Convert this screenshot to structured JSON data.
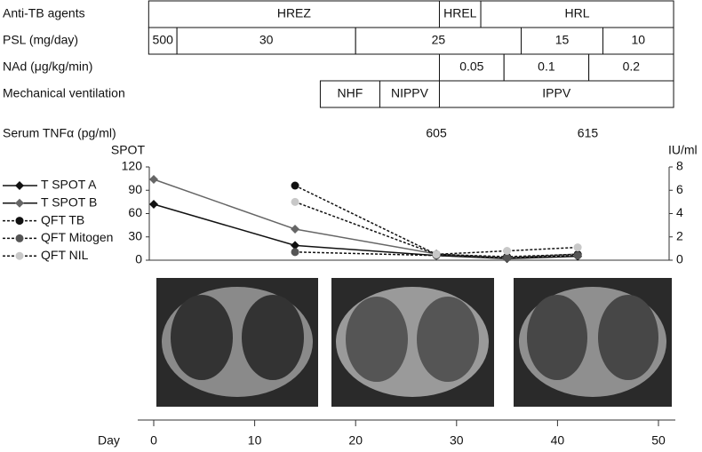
{
  "timeline": {
    "rows": [
      {
        "label": "Anti-TB agents",
        "segments": [
          {
            "label": "HREZ",
            "start": -0.5,
            "end": 28.3
          },
          {
            "label": "HREL",
            "start": 28.3,
            "end": 32.4
          },
          {
            "label": "HRL",
            "start": 32.4,
            "end": 51.5
          }
        ]
      },
      {
        "label": "PSL (mg/day)",
        "segments": [
          {
            "label": 500,
            "start": -0.5,
            "end": 2.3
          },
          {
            "label": 30,
            "start": 2.3,
            "end": 20
          },
          {
            "label": 25,
            "start": 20,
            "end": 36.4
          },
          {
            "label": 15,
            "start": 36.4,
            "end": 44.5
          },
          {
            "label": 10,
            "start": 44.5,
            "end": 51.5
          }
        ]
      },
      {
        "label": "NAd (μg/kg/min)",
        "segments": [
          {
            "label": 0.05,
            "start": 28.3,
            "end": 34.7
          },
          {
            "label": 0.1,
            "start": 34.7,
            "end": 43.1
          },
          {
            "label": 0.2,
            "start": 43.1,
            "end": 51.5
          }
        ]
      },
      {
        "label": "Mechanical ventilation",
        "segments": [
          {
            "label": "NHF",
            "start": 16.5,
            "end": 22.4
          },
          {
            "label": "NIPPV",
            "start": 22.4,
            "end": 28.3
          },
          {
            "label": "IPPV",
            "start": 28.3,
            "end": 51.5
          }
        ]
      }
    ]
  },
  "serum_tnf": {
    "label": "Serum TNFα (pg/ml)",
    "x": [
      28,
      43
    ],
    "values": [
      605,
      615
    ]
  },
  "chart_data": {
    "type": "line",
    "xlabel": "Day",
    "ylabel": "SPOT",
    "y2label": "IU/ml",
    "x": [
      0,
      14,
      28,
      35,
      42
    ],
    "xlim": [
      0,
      50
    ],
    "xticks": [
      0,
      10,
      20,
      30,
      40,
      50
    ],
    "ylim": [
      0,
      120
    ],
    "yticks": [
      0,
      30,
      60,
      90,
      120
    ],
    "y2lim": [
      0,
      8
    ],
    "y2ticks": [
      0,
      2,
      4,
      6,
      8
    ],
    "series": [
      {
        "name": "T SPOT A",
        "color": "#111111",
        "line_style": "solid",
        "marker": "diamond",
        "values": [
          72,
          19,
          6,
          2,
          5
        ]
      },
      {
        "name": "T SPOT B",
        "color": "#666666",
        "line_style": "solid",
        "marker": "diamond",
        "values": [
          104,
          40,
          8,
          3,
          8
        ]
      },
      {
        "name": "QFT TB",
        "color": "#111111",
        "line_style": "dashed",
        "marker": "circle",
        "axis": "y2",
        "values": [
          null,
          6.4,
          0.5,
          0.3,
          0.5
        ]
      },
      {
        "name": "QFT Mitogen",
        "color": "#555555",
        "line_style": "dashed",
        "marker": "circle",
        "axis": "y2",
        "values": [
          null,
          0.7,
          0.4,
          0.2,
          0.4
        ]
      },
      {
        "name": "QFT NIL",
        "color": "#c8c8c8",
        "line_style": "dashed",
        "marker": "circle",
        "axis": "y2",
        "values": [
          null,
          5.0,
          0.5,
          0.8,
          1.1
        ]
      }
    ]
  }
}
